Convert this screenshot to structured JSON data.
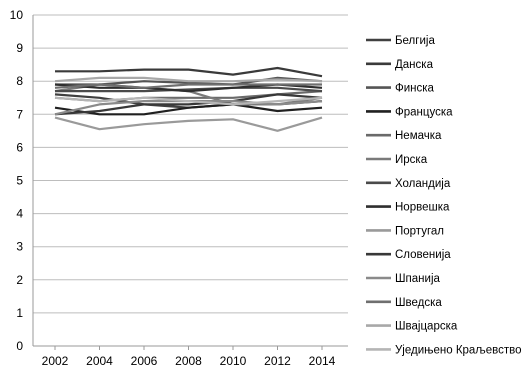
{
  "chart_data": {
    "type": "line",
    "title": "",
    "xlabel": "",
    "ylabel": "",
    "x": [
      2002,
      2004,
      2006,
      2008,
      2010,
      2012,
      2014
    ],
    "xlim": [
      2002,
      2014
    ],
    "ylim": [
      0,
      10
    ],
    "y_ticks": [
      0,
      1,
      2,
      3,
      4,
      5,
      6,
      7,
      8,
      9,
      10
    ],
    "grid": "horizontal",
    "legend_position": "right",
    "series": [
      {
        "name": "Белгија",
        "color": "#404040",
        "values": [
          7.6,
          7.5,
          7.3,
          7.2,
          7.3,
          7.3,
          7.4
        ]
      },
      {
        "name": "Данска",
        "color": "#3a3a3a",
        "values": [
          8.3,
          8.3,
          8.35,
          8.35,
          8.2,
          8.4,
          8.15
        ]
      },
      {
        "name": "Финска",
        "color": "#555555",
        "values": [
          7.9,
          7.9,
          8.0,
          7.95,
          7.9,
          8.1,
          8.0
        ]
      },
      {
        "name": "Француска",
        "color": "#202020",
        "values": [
          7.2,
          7.0,
          7.0,
          7.2,
          7.3,
          7.1,
          7.2
        ]
      },
      {
        "name": "Немачка",
        "color": "#6a6a6a",
        "values": [
          7.5,
          7.4,
          7.5,
          7.5,
          7.5,
          7.6,
          7.7
        ]
      },
      {
        "name": "Ирска",
        "color": "#7a7a7a",
        "values": [
          7.7,
          7.9,
          7.8,
          7.7,
          7.3,
          7.3,
          7.5
        ]
      },
      {
        "name": "Холандија",
        "color": "#4a4a4a",
        "values": [
          7.7,
          7.7,
          7.7,
          7.75,
          7.8,
          7.8,
          7.7
        ]
      },
      {
        "name": "Норвешка",
        "color": "#2e2e2e",
        "values": [
          7.9,
          7.8,
          7.8,
          7.7,
          7.8,
          7.9,
          7.8
        ]
      },
      {
        "name": "Португал",
        "color": "#9a9a9a",
        "values": [
          6.9,
          6.55,
          6.7,
          6.8,
          6.85,
          6.5,
          6.9
        ]
      },
      {
        "name": "Словенија",
        "color": "#383838",
        "values": [
          7.0,
          7.1,
          7.3,
          7.3,
          7.4,
          7.6,
          7.5
        ]
      },
      {
        "name": "Шпанија",
        "color": "#8a8a8a",
        "values": [
          7.0,
          7.3,
          7.4,
          7.4,
          7.4,
          7.3,
          7.4
        ]
      },
      {
        "name": "Шведска",
        "color": "#6f6f6f",
        "values": [
          7.8,
          7.9,
          7.8,
          7.9,
          7.9,
          7.9,
          7.9
        ]
      },
      {
        "name": "Швајцарска",
        "color": "#a8a8a8",
        "values": [
          8.0,
          8.1,
          8.1,
          8.0,
          8.0,
          8.05,
          8.0
        ]
      },
      {
        "name": "Уједињено Краљевство",
        "color": "#b5b5b5",
        "values": [
          7.5,
          7.4,
          7.5,
          7.4,
          7.3,
          7.4,
          7.5
        ]
      }
    ]
  }
}
